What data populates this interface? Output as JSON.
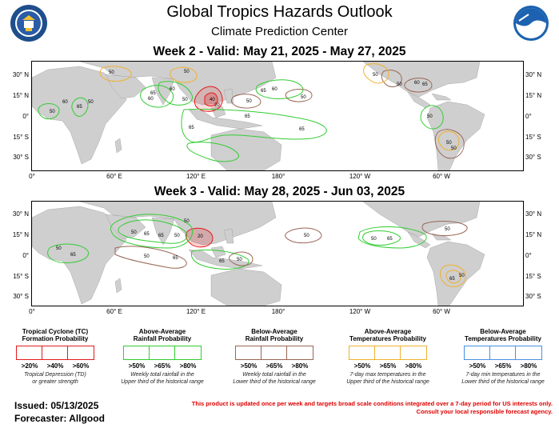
{
  "header": {
    "title": "Global Tropics Hazards Outlook",
    "subtitle": "Climate Prediction Center",
    "left_seal": "commerce-seal-icon",
    "right_logo": "noaa-logo-icon"
  },
  "week2": {
    "title": "Week 2 - Valid: May 21, 2025 - May 27, 2025"
  },
  "week3": {
    "title": "Week 3 - Valid: May 28, 2025 - Jun 03, 2025"
  },
  "axes": {
    "lat_left": [
      "30° N",
      "15° N",
      "0°",
      "15° S",
      "30° S"
    ],
    "lat_right": [
      "30° N",
      "15° N",
      "0°",
      "15° S",
      "30° S"
    ],
    "lon": [
      "0°",
      "60° E",
      "120° E",
      "180°",
      "120° W",
      "60° W"
    ]
  },
  "colors": {
    "tc": "#e41a1c",
    "above_rain": "#33cc33",
    "below_rain": "#996655",
    "above_temp": "#f0b030",
    "below_temp": "#4a90e2",
    "land": "#cfcfcf",
    "ocean": "#ffffff"
  },
  "legend": [
    {
      "title_line1": "Tropical Cyclone (TC)",
      "title_line2": "Formation Probability",
      "labels": [
        ">20%",
        ">40%",
        ">60%"
      ],
      "note_line1": "Tropical Depression (TD)",
      "note_line2": "or greater strength",
      "color": "#e41a1c"
    },
    {
      "title_line1": "Above-Average",
      "title_line2": "Rainfall Probability",
      "labels": [
        ">50%",
        ">65%",
        ">80%"
      ],
      "note_line1": "Weekly total rainfall in the",
      "note_line2": "Upper third of the historical range",
      "color": "#33cc33"
    },
    {
      "title_line1": "Below-Average",
      "title_line2": "Rainfall Probability",
      "labels": [
        ">50%",
        ">65%",
        ">80%"
      ],
      "note_line1": "Weekly total rainfall in the",
      "note_line2": "Lower third of the historical range",
      "color": "#996655"
    },
    {
      "title_line1": "Above-Average",
      "title_line2": "Temperatures Probability",
      "labels": [
        ">50%",
        ">65%",
        ">80%"
      ],
      "note_line1": "7-day max temperatures in the",
      "note_line2": "Upper third of the historical range",
      "color": "#f0b030"
    },
    {
      "title_line1": "Below-Average",
      "title_line2": "Temperatures Probability",
      "labels": [
        ">50%",
        ">65%",
        ">80%"
      ],
      "note_line1": "7-day min temperatures in the",
      "note_line2": "Lower third of the historical range",
      "color": "#4a90e2"
    }
  ],
  "footer": {
    "issued": "Issued: 05/13/2025",
    "forecaster": "Forecaster: Allgood",
    "disclaimer_line1": "This product is updated once per week and targets broad scale conditions integrated over a 7-day period for US interests only.",
    "disclaimer_line2": "Consult your local responsible forecast agency."
  },
  "week2_contour_labels": [
    "50",
    "50",
    "50",
    "60",
    "65",
    "60",
    "65",
    "65",
    "65",
    "40",
    "20",
    "50",
    "60",
    "65",
    "50",
    "50",
    "65",
    "60",
    "50",
    "50",
    "60",
    "50",
    "50",
    "65",
    "50",
    "50"
  ],
  "week3_contour_labels": [
    "50",
    "65",
    "65",
    "50",
    "20",
    "50",
    "65",
    "50",
    "65",
    "50",
    "65",
    "50",
    "50",
    "50",
    "50",
    "65",
    "50",
    "65"
  ]
}
